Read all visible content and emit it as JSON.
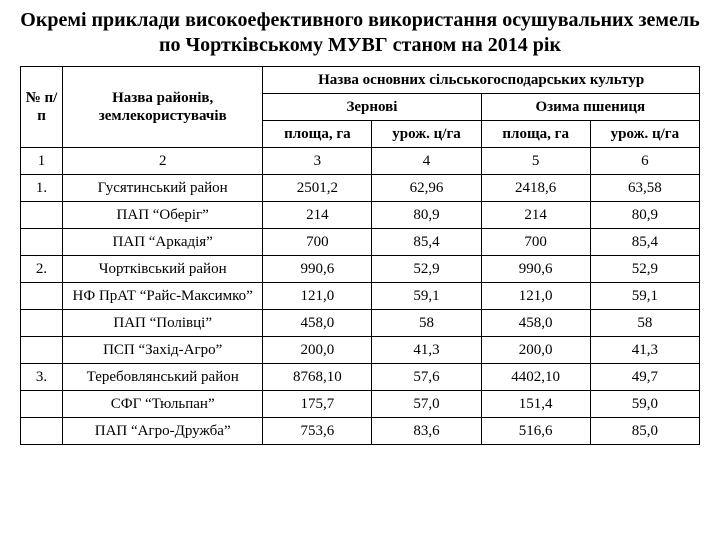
{
  "title": "Окремі приклади високоефективного використання осушувальних земель  по Чортківському МУВГ станом на 2014 рік",
  "columns": {
    "num": "№ п/п",
    "name": "Назва районів, землекористувачів",
    "crops": "Назва основних сільськогосподарських культур",
    "grain": "Зернові",
    "wheat": "Озима пшениця",
    "area": "площа, га",
    "yield": "урож. ц/га"
  },
  "numrow": {
    "c0": "1",
    "c1": "2",
    "c2": "3",
    "c3": "4",
    "c4": "5",
    "c5": "6"
  },
  "rows": [
    {
      "n": "1.",
      "name": "Гусятинський район",
      "a1": "2501,2",
      "y1": "62,96",
      "a2": "2418,6",
      "y2": "63,58"
    },
    {
      "n": "",
      "name": "ПАП “Оберіг”",
      "a1": "214",
      "y1": "80,9",
      "a2": "214",
      "y2": "80,9"
    },
    {
      "n": "",
      "name": "ПАП “Аркадія”",
      "a1": "700",
      "y1": "85,4",
      "a2": "700",
      "y2": "85,4"
    },
    {
      "n": "2.",
      "name": "Чортківський район",
      "a1": "990,6",
      "y1": "52,9",
      "a2": "990,6",
      "y2": "52,9"
    },
    {
      "n": "",
      "name": "НФ ПрАТ “Райс-Максимко”",
      "a1": "121,0",
      "y1": "59,1",
      "a2": "121,0",
      "y2": "59,1"
    },
    {
      "n": "",
      "name": "ПАП “Полівці”",
      "a1": "458,0",
      "y1": "58",
      "a2": "458,0",
      "y2": "58"
    },
    {
      "n": "",
      "name": "ПСП “Захід-Агро”",
      "a1": "200,0",
      "y1": "41,3",
      "a2": "200,0",
      "y2": "41,3"
    },
    {
      "n": "3.",
      "name": "Теребовлянський район",
      "a1": "8768,10",
      "y1": "57,6",
      "a2": "4402,10",
      "y2": "49,7"
    },
    {
      "n": "",
      "name": "СФГ “Тюльпан”",
      "a1": "175,7",
      "y1": "57,0",
      "a2": "151,4",
      "y2": "59,0"
    },
    {
      "n": "",
      "name": "ПАП “Агро-Дружба”",
      "a1": "753,6",
      "y1": "83,6",
      "a2": "516,6",
      "y2": "85,0"
    }
  ]
}
